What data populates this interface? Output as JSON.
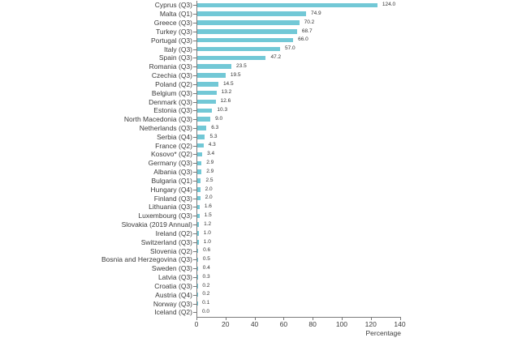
{
  "chart_data": {
    "type": "bar",
    "orientation": "horizontal",
    "categories": [
      "Cyprus (Q3)",
      "Malta (Q1)",
      "Greece (Q3)",
      "Turkey (Q3)",
      "Portugal (Q3)",
      "Italy (Q3)",
      "Spain (Q3)",
      "Romania (Q3)",
      "Czechia (Q3)",
      "Poland (Q2)",
      "Belgium (Q3)",
      "Denmark (Q3)",
      "Estonia (Q3)",
      "North Macedonia (Q3)",
      "Netherlands (Q3)",
      "Serbia (Q4)",
      "France (Q2)",
      "Kosovo* (Q2)",
      "Germany (Q3)",
      "Albania (Q3)",
      "Bulgaria (Q1)",
      "Hungary (Q4)",
      "Finland (Q3)",
      "Lithuania (Q3)",
      "Luxembourg (Q3)",
      "Slovakia (2019 Annual)",
      "Ireland (Q2)",
      "Switzerland (Q3)",
      "Slovenia (Q2)",
      "Bosnia and Herzegovina (Q3)",
      "Sweden (Q3)",
      "Latvia (Q3)",
      "Croatia (Q3)",
      "Austria (Q4)",
      "Norway (Q3)",
      "Iceland (Q2)"
    ],
    "values": [
      124.0,
      74.9,
      70.2,
      68.7,
      66.0,
      57.0,
      47.2,
      23.5,
      19.5,
      14.5,
      13.2,
      12.6,
      10.3,
      9.0,
      6.3,
      5.3,
      4.3,
      3.4,
      2.9,
      2.9,
      2.5,
      2.0,
      2.0,
      1.6,
      1.5,
      1.2,
      1.0,
      1.0,
      0.6,
      0.5,
      0.4,
      0.3,
      0.2,
      0.2,
      0.1,
      0.0
    ],
    "value_labels": [
      "124.0",
      "74.9",
      "70.2",
      "68.7",
      "66.0",
      "57.0",
      "47.2",
      "23.5",
      "19.5",
      "14.5",
      "13.2",
      "12.6",
      "10.3",
      "9.0",
      "6.3",
      "5.3",
      "4.3",
      "3.4",
      "2.9",
      "2.9",
      "2.5",
      "2.0",
      "2.0",
      "1.6",
      "1.5",
      "1.2",
      "1.0",
      "1.0",
      "0.6",
      "0.5",
      "0.4",
      "0.3",
      "0.2",
      "0.2",
      "0.1",
      "0.0"
    ],
    "title": "",
    "xlabel": "Percentage",
    "ylabel": "",
    "xlim": [
      0,
      140
    ],
    "xticks": [
      0,
      20,
      40,
      60,
      80,
      100,
      120,
      140
    ],
    "grid": false,
    "legend": false,
    "bar_color": "#72c8d6",
    "axis_color": "#7a7a7a",
    "text_color": "#3a3a3a"
  }
}
